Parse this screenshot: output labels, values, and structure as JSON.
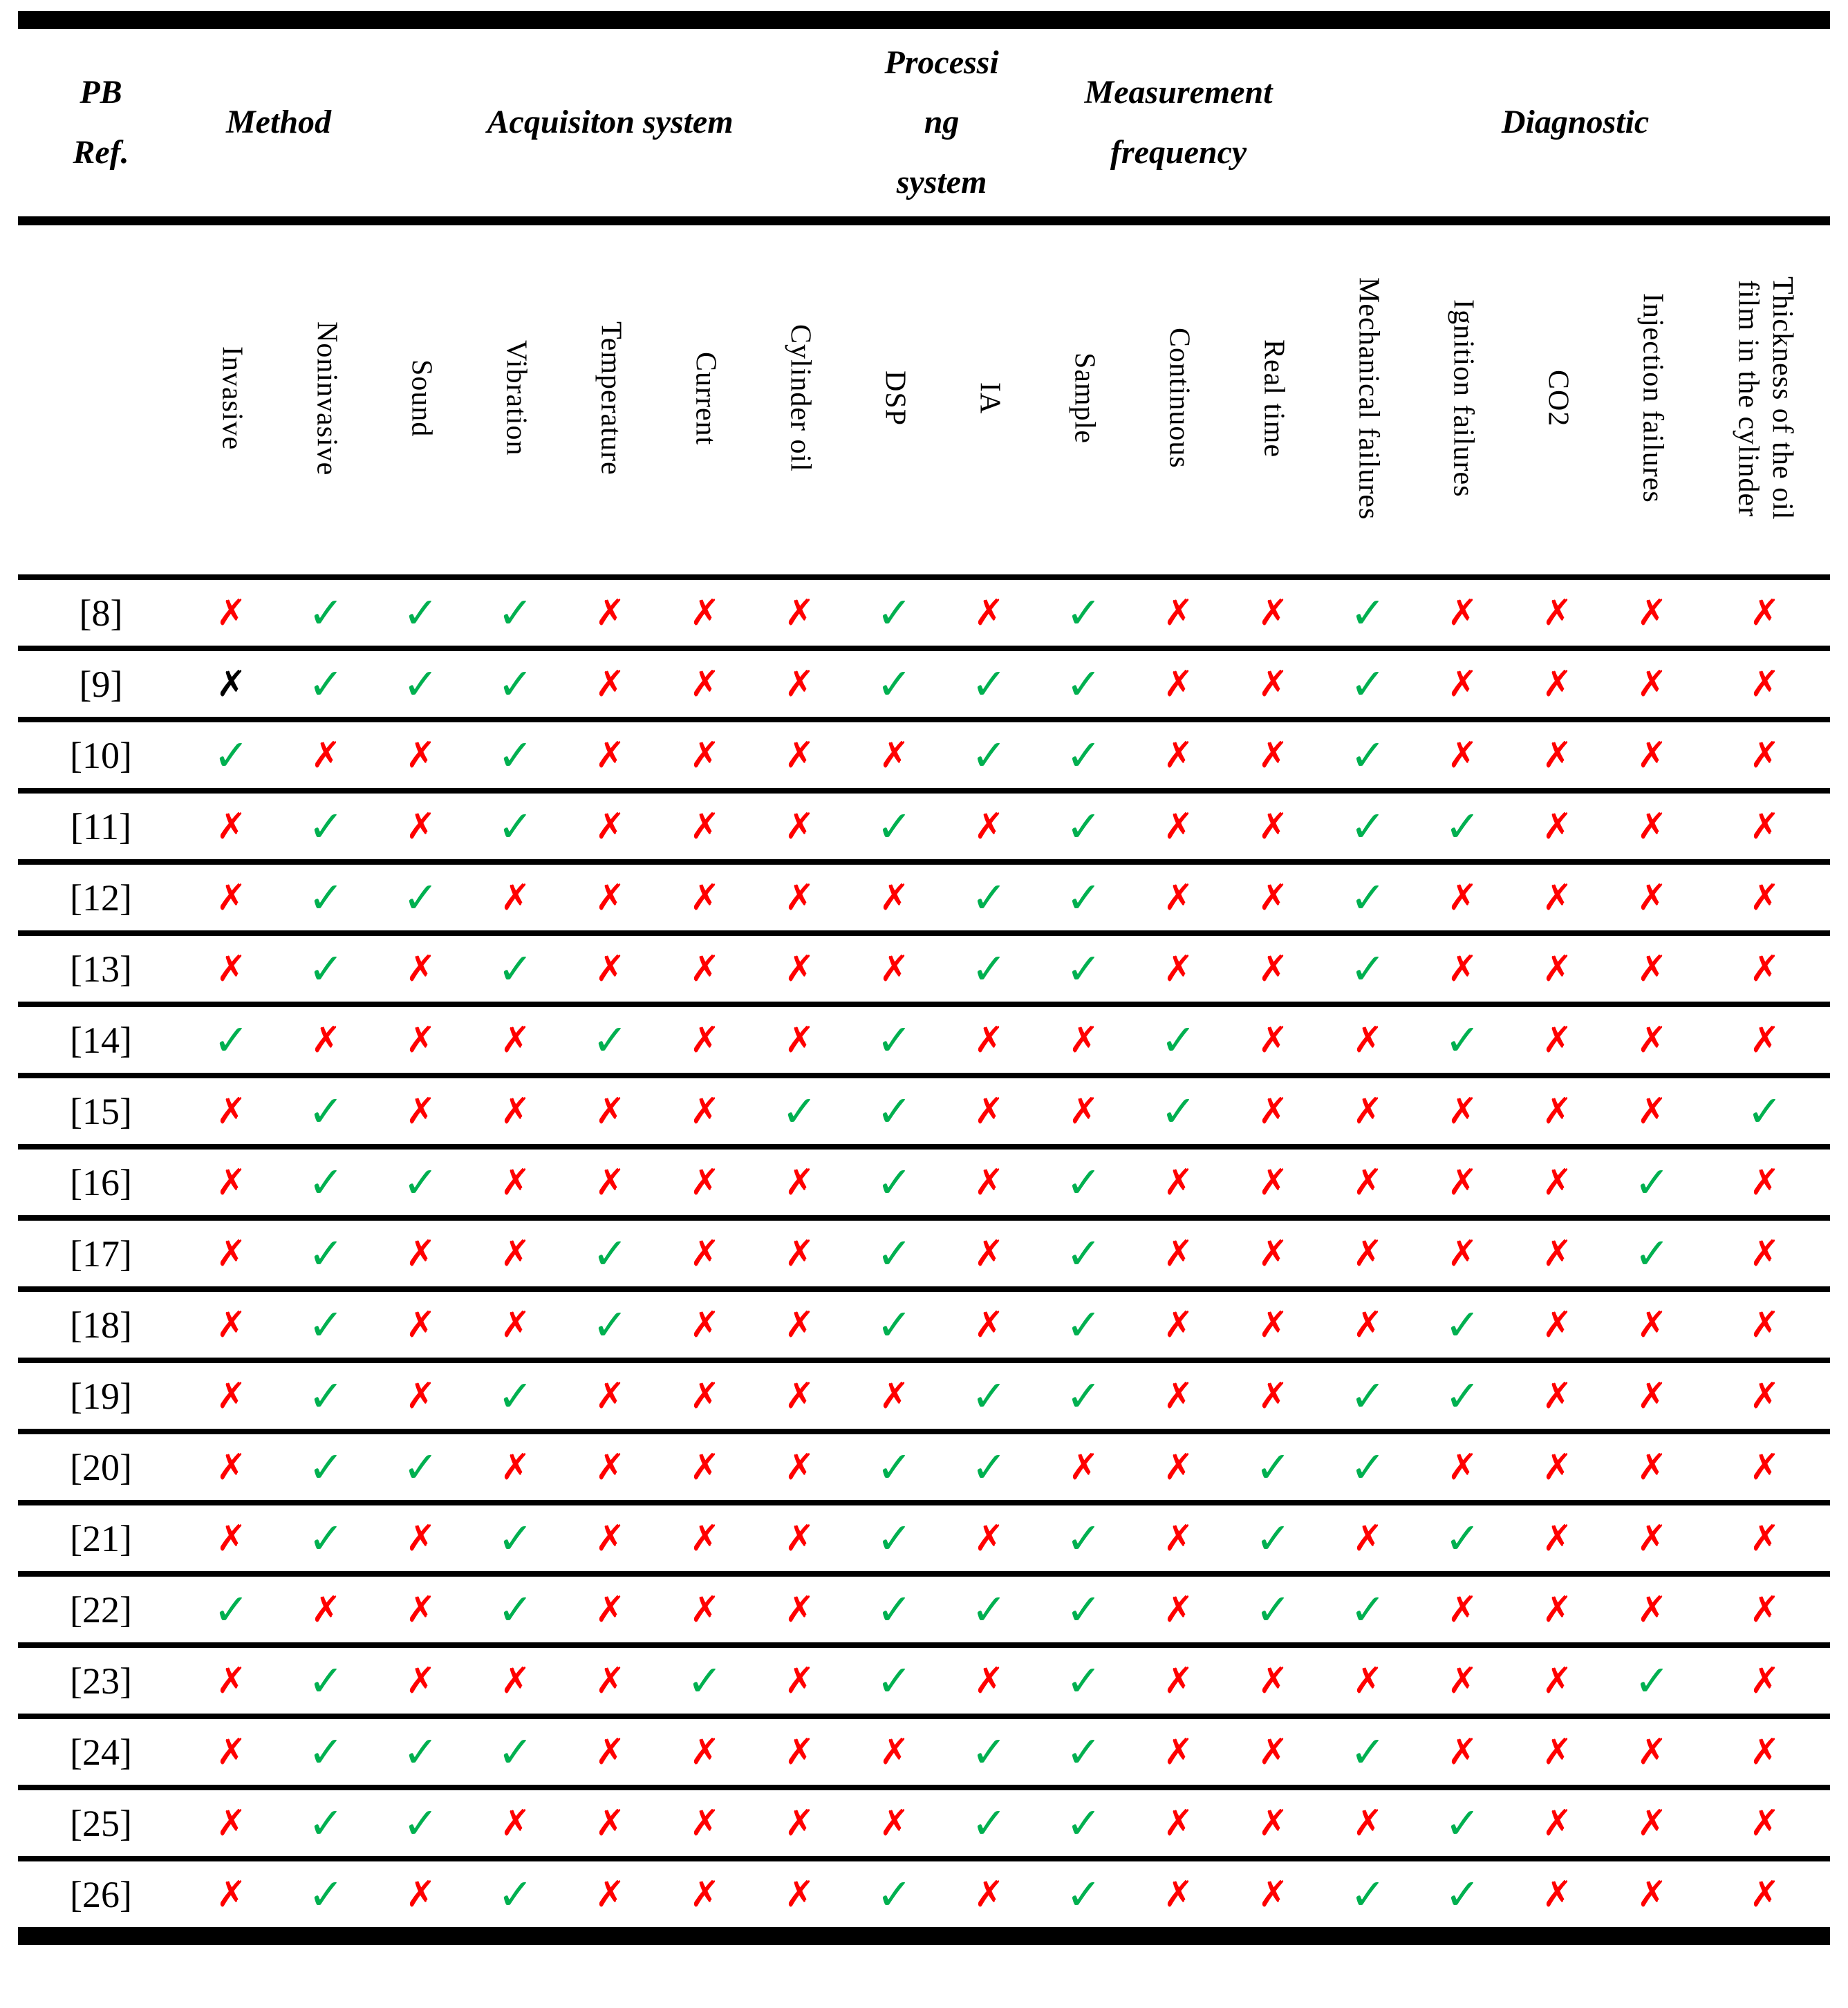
{
  "table": {
    "group_headers": [
      {
        "label": "PB\nRef.",
        "span": 1
      },
      {
        "label": "Method",
        "span": 2
      },
      {
        "label": "Acquisiton system",
        "span": 5
      },
      {
        "label": "Processi\nng\nsystem",
        "span": 2
      },
      {
        "label": "Measurement\nfrequency",
        "span": 3
      },
      {
        "label": "Diagnostic",
        "span": 5
      }
    ],
    "columns": [
      "Invasive",
      "Noninvasive",
      "Sound",
      "Vibration",
      "Temperature",
      "Current",
      "Cylinder oil",
      "DSP",
      "IA",
      "Sample",
      "Continuous",
      "Real time",
      "Mechanical failures",
      "Ignition failures",
      "CO2",
      "Injection failures",
      "Thickness of the oil\nfilm in the cylinder"
    ],
    "glyphs": {
      "check": "✓",
      "cross": "✗"
    },
    "colors": {
      "check": "#00B050",
      "cross": "#FF0000",
      "cross_black": "#000000"
    },
    "rows": [
      {
        "ref": "[8]",
        "marks": [
          "x",
          "c",
          "c",
          "c",
          "x",
          "x",
          "x",
          "c",
          "x",
          "c",
          "x",
          "x",
          "c",
          "x",
          "x",
          "x",
          "x"
        ]
      },
      {
        "ref": "[9]",
        "marks": [
          "xb",
          "c",
          "c",
          "c",
          "x",
          "x",
          "x",
          "c",
          "c",
          "c",
          "x",
          "x",
          "c",
          "x",
          "x",
          "x",
          "x"
        ]
      },
      {
        "ref": "[10]",
        "marks": [
          "c",
          "x",
          "x",
          "c",
          "x",
          "x",
          "x",
          "x",
          "c",
          "c",
          "x",
          "x",
          "c",
          "x",
          "x",
          "x",
          "x"
        ]
      },
      {
        "ref": "[11]",
        "marks": [
          "x",
          "c",
          "x",
          "c",
          "x",
          "x",
          "x",
          "c",
          "x",
          "c",
          "x",
          "x",
          "c",
          "c",
          "x",
          "x",
          "x"
        ]
      },
      {
        "ref": "[12]",
        "marks": [
          "x",
          "c",
          "c",
          "x",
          "x",
          "x",
          "x",
          "x",
          "c",
          "c",
          "x",
          "x",
          "c",
          "x",
          "x",
          "x",
          "x"
        ]
      },
      {
        "ref": "[13]",
        "marks": [
          "x",
          "c",
          "x",
          "c",
          "x",
          "x",
          "x",
          "x",
          "c",
          "c",
          "x",
          "x",
          "c",
          "x",
          "x",
          "x",
          "x"
        ]
      },
      {
        "ref": "[14]",
        "marks": [
          "c",
          "x",
          "x",
          "x",
          "c",
          "x",
          "x",
          "c",
          "x",
          "x",
          "c",
          "x",
          "x",
          "c",
          "x",
          "x",
          "x"
        ]
      },
      {
        "ref": "[15]",
        "marks": [
          "x",
          "c",
          "x",
          "x",
          "x",
          "x",
          "c",
          "c",
          "x",
          "x",
          "c",
          "x",
          "x",
          "x",
          "x",
          "x",
          "c"
        ]
      },
      {
        "ref": "[16]",
        "marks": [
          "x",
          "c",
          "c",
          "x",
          "x",
          "x",
          "x",
          "c",
          "x",
          "c",
          "x",
          "x",
          "x",
          "x",
          "x",
          "c",
          "x"
        ]
      },
      {
        "ref": "[17]",
        "marks": [
          "x",
          "c",
          "x",
          "x",
          "c",
          "x",
          "x",
          "c",
          "x",
          "c",
          "x",
          "x",
          "x",
          "x",
          "x",
          "c",
          "x"
        ]
      },
      {
        "ref": "[18]",
        "marks": [
          "x",
          "c",
          "x",
          "x",
          "c",
          "x",
          "x",
          "c",
          "x",
          "c",
          "x",
          "x",
          "x",
          "c",
          "x",
          "x",
          "x"
        ]
      },
      {
        "ref": "[19]",
        "marks": [
          "x",
          "c",
          "x",
          "c",
          "x",
          "x",
          "x",
          "x",
          "c",
          "c",
          "x",
          "x",
          "c",
          "c",
          "x",
          "x",
          "x"
        ]
      },
      {
        "ref": "[20]",
        "marks": [
          "x",
          "c",
          "c",
          "x",
          "x",
          "x",
          "x",
          "c",
          "c",
          "x",
          "x",
          "c",
          "c",
          "x",
          "x",
          "x",
          "x"
        ]
      },
      {
        "ref": "[21]",
        "marks": [
          "x",
          "c",
          "x",
          "c",
          "x",
          "x",
          "x",
          "c",
          "x",
          "c",
          "x",
          "c",
          "x",
          "c",
          "x",
          "x",
          "x"
        ]
      },
      {
        "ref": "[22]",
        "marks": [
          "c",
          "x",
          "x",
          "c",
          "x",
          "x",
          "x",
          "c",
          "c",
          "c",
          "x",
          "c",
          "c",
          "x",
          "x",
          "x",
          "x"
        ]
      },
      {
        "ref": "[23]",
        "marks": [
          "x",
          "c",
          "x",
          "x",
          "x",
          "c",
          "x",
          "c",
          "x",
          "c",
          "x",
          "x",
          "x",
          "x",
          "x",
          "c",
          "x"
        ]
      },
      {
        "ref": "[24]",
        "marks": [
          "x",
          "c",
          "c",
          "c",
          "x",
          "x",
          "x",
          "x",
          "c",
          "c",
          "x",
          "x",
          "c",
          "x",
          "x",
          "x",
          "x"
        ]
      },
      {
        "ref": "[25]",
        "marks": [
          "x",
          "c",
          "c",
          "x",
          "x",
          "x",
          "x",
          "x",
          "c",
          "c",
          "x",
          "x",
          "x",
          "c",
          "x",
          "x",
          "x"
        ]
      },
      {
        "ref": "[26]",
        "marks": [
          "x",
          "c",
          "x",
          "c",
          "x",
          "x",
          "x",
          "c",
          "x",
          "c",
          "x",
          "x",
          "c",
          "c",
          "x",
          "x",
          "x"
        ]
      }
    ]
  }
}
